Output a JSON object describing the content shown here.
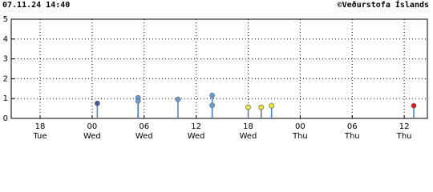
{
  "header": {
    "timestamp": "07.11.24 14:40",
    "credit": "©Veðurstofa Íslands"
  },
  "chart_data": {
    "type": "stem",
    "x": [
      6.6,
      11.3,
      11.3,
      15.9,
      19.85,
      19.85,
      24.0,
      25.5,
      26.7,
      43.1
    ],
    "values": [
      0.76,
      1.04,
      0.88,
      0.96,
      1.16,
      0.66,
      0.56,
      0.56,
      0.64,
      0.64
    ],
    "colors": [
      "#3d5f9c",
      "#6c9fd6",
      "#6c9fd6",
      "#6c9fd6",
      "#6c9fd6",
      "#6c9fd6",
      "#f0e830",
      "#f0e830",
      "#f0e830",
      "#e02020"
    ],
    "stem_color": "#4a7fc4",
    "xlim": [
      -3.33,
      44.67
    ],
    "xticks": [
      {
        "value": 0,
        "label": "18"
      },
      {
        "value": 6,
        "label": "00"
      },
      {
        "value": 12,
        "label": "06"
      },
      {
        "value": 18,
        "label": "12"
      },
      {
        "value": 24,
        "label": "18"
      },
      {
        "value": 30,
        "label": "00"
      },
      {
        "value": 36,
        "label": "06"
      },
      {
        "value": 42,
        "label": "12"
      }
    ],
    "xtick_days": [
      "Tue",
      "Wed",
      "Wed",
      "Wed",
      "Wed",
      "Thu",
      "Thu",
      "Thu"
    ],
    "ylim": [
      0,
      5
    ],
    "yticks": [
      0,
      1,
      2,
      3,
      4,
      5
    ],
    "grid": true
  }
}
